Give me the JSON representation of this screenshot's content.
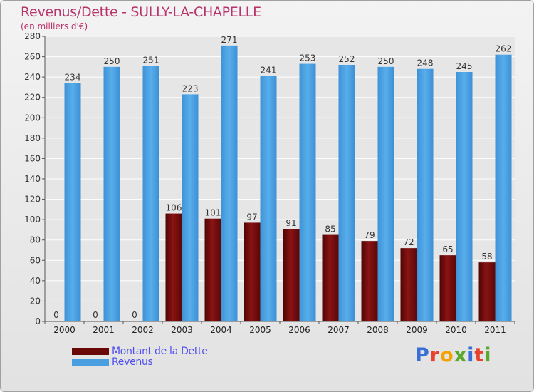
{
  "chart_data": {
    "type": "bar",
    "title": "Revenus/Dette - SULLY-LA-CHAPELLE",
    "subtitle": "(en milliers d'€)",
    "xlabel": "",
    "ylabel": "",
    "ylim": [
      0,
      280
    ],
    "yticks": [
      0,
      20,
      40,
      60,
      80,
      100,
      120,
      140,
      160,
      180,
      200,
      220,
      240,
      260,
      280
    ],
    "grid": true,
    "legend_position": "bottom-left",
    "categories": [
      "2000",
      "2001",
      "2002",
      "2003",
      "2004",
      "2005",
      "2006",
      "2007",
      "2008",
      "2009",
      "2010",
      "2011"
    ],
    "series": [
      {
        "name": "Montant de la Dette",
        "color": "#7a0c0c",
        "values": [
          0,
          0,
          0,
          106,
          101,
          97,
          91,
          85,
          79,
          72,
          65,
          58
        ]
      },
      {
        "name": "Revenus",
        "color": "#4a9fe0",
        "values": [
          234,
          250,
          251,
          223,
          271,
          241,
          253,
          252,
          250,
          248,
          245,
          262
        ]
      }
    ]
  },
  "branding": {
    "logo_text": "Proxiti",
    "logo_colors": [
      "#3b6fd8",
      "#e8412c",
      "#f2a300",
      "#5aa92e",
      "#3b6fd8",
      "#e8412c",
      "#5aa92e"
    ]
  }
}
